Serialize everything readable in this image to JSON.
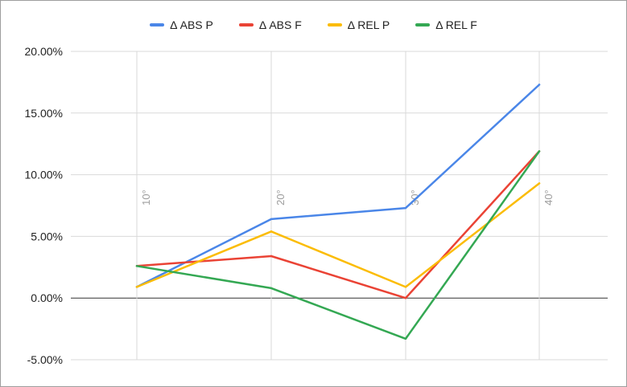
{
  "chart_data": {
    "type": "line",
    "title": "",
    "xlabel": "",
    "ylabel": "",
    "categories": [
      "10°",
      "20°",
      "30°",
      "40°"
    ],
    "y_ticks": [
      "20.00%",
      "15.00%",
      "10.00%",
      "5.00%",
      "0.00%",
      "-5.00%"
    ],
    "ylim": [
      -5,
      20
    ],
    "legend_position": "top",
    "grid": true,
    "series": [
      {
        "name": "Δ ABS P",
        "color": "#4a86e8",
        "values": [
          0.9,
          6.4,
          7.3,
          17.3
        ]
      },
      {
        "name": "Δ ABS F",
        "color": "#ea4335",
        "values": [
          2.6,
          3.4,
          0.0,
          11.9
        ]
      },
      {
        "name": "Δ REL P",
        "color": "#fbbc04",
        "values": [
          0.9,
          5.4,
          0.9,
          9.3
        ]
      },
      {
        "name": "Δ REL F",
        "color": "#34a853",
        "values": [
          2.6,
          0.8,
          -3.3,
          11.9
        ]
      }
    ]
  }
}
